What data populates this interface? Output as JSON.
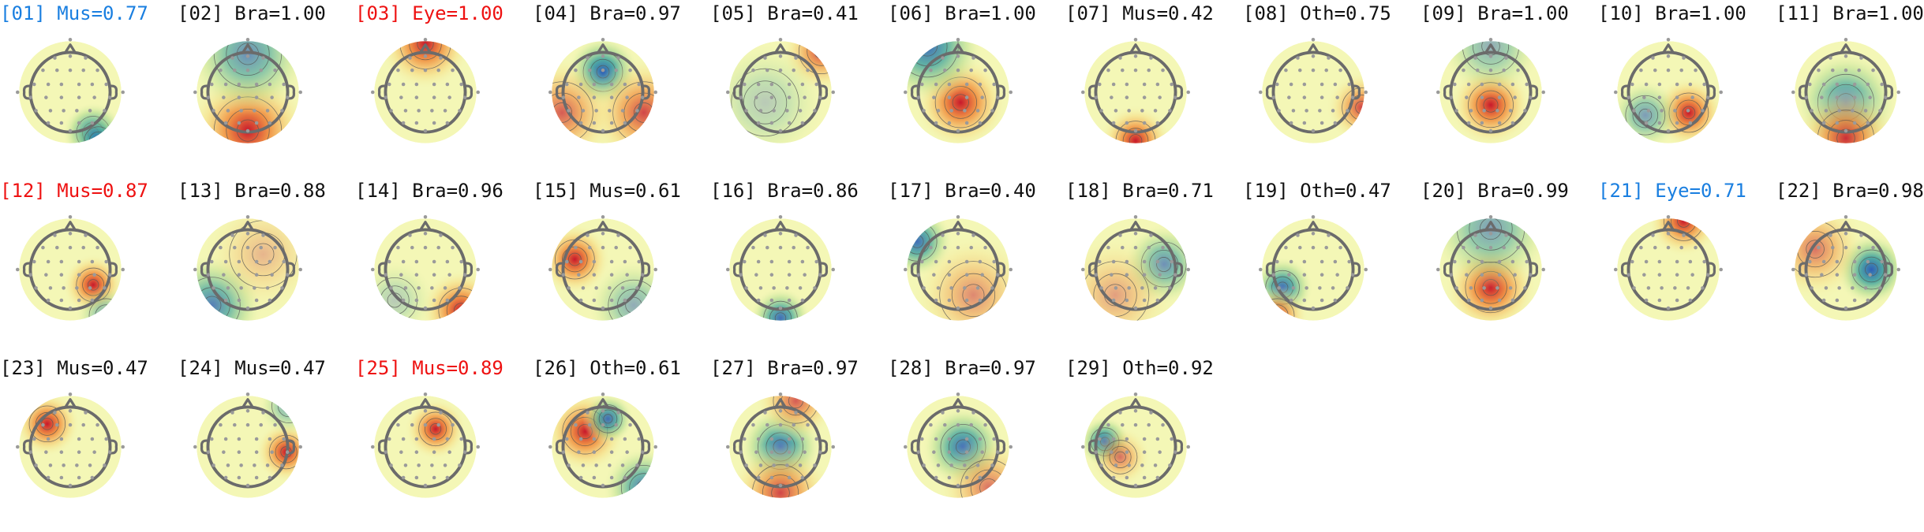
{
  "colors": {
    "flag_red": "#ee1111",
    "flag_blue": "#1a7fe0",
    "text": "#111111",
    "head_outline": "#6b6b6b",
    "electrode": "#9a9a9a",
    "contour": "#555555",
    "scale_neg": "#2f5fb8",
    "scale_mid": "#f4f7b6",
    "scale_pos": "#c8192b"
  },
  "components": [
    {
      "id": "[01]",
      "label": "Mus=0.77",
      "id_color": "blue",
      "label_color": "blue"
    },
    {
      "id": "[02]",
      "label": "Bra=1.00",
      "id_color": "black",
      "label_color": "black"
    },
    {
      "id": "[03]",
      "label": "Eye=1.00",
      "id_color": "red",
      "label_color": "red"
    },
    {
      "id": "[04]",
      "label": "Bra=0.97",
      "id_color": "black",
      "label_color": "black"
    },
    {
      "id": "[05]",
      "label": "Bra=0.41",
      "id_color": "black",
      "label_color": "black"
    },
    {
      "id": "[06]",
      "label": "Bra=1.00",
      "id_color": "black",
      "label_color": "black"
    },
    {
      "id": "[07]",
      "label": "Mus=0.42",
      "id_color": "black",
      "label_color": "black"
    },
    {
      "id": "[08]",
      "label": "Oth=0.75",
      "id_color": "black",
      "label_color": "black"
    },
    {
      "id": "[09]",
      "label": "Bra=1.00",
      "id_color": "black",
      "label_color": "black"
    },
    {
      "id": "[10]",
      "label": "Bra=1.00",
      "id_color": "black",
      "label_color": "black"
    },
    {
      "id": "[11]",
      "label": "Bra=1.00",
      "id_color": "black",
      "label_color": "black"
    },
    {
      "id": "[12]",
      "label": "Mus=0.87",
      "id_color": "red",
      "label_color": "red"
    },
    {
      "id": "[13]",
      "label": "Bra=0.88",
      "id_color": "black",
      "label_color": "black"
    },
    {
      "id": "[14]",
      "label": "Bra=0.96",
      "id_color": "black",
      "label_color": "black"
    },
    {
      "id": "[15]",
      "label": "Mus=0.61",
      "id_color": "black",
      "label_color": "black"
    },
    {
      "id": "[16]",
      "label": "Bra=0.86",
      "id_color": "black",
      "label_color": "black"
    },
    {
      "id": "[17]",
      "label": "Bra=0.40",
      "id_color": "black",
      "label_color": "black"
    },
    {
      "id": "[18]",
      "label": "Bra=0.71",
      "id_color": "black",
      "label_color": "black"
    },
    {
      "id": "[19]",
      "label": "Oth=0.47",
      "id_color": "black",
      "label_color": "black"
    },
    {
      "id": "[20]",
      "label": "Bra=0.99",
      "id_color": "black",
      "label_color": "black"
    },
    {
      "id": "[21]",
      "label": "Eye=0.71",
      "id_color": "blue",
      "label_color": "blue"
    },
    {
      "id": "[22]",
      "label": "Bra=0.98",
      "id_color": "black",
      "label_color": "black"
    },
    {
      "id": "[23]",
      "label": "Mus=0.47",
      "id_color": "black",
      "label_color": "black"
    },
    {
      "id": "[24]",
      "label": "Mus=0.47",
      "id_color": "black",
      "label_color": "black"
    },
    {
      "id": "[25]",
      "label": "Mus=0.89",
      "id_color": "red",
      "label_color": "red"
    },
    {
      "id": "[26]",
      "label": "Oth=0.61",
      "id_color": "black",
      "label_color": "black"
    },
    {
      "id": "[27]",
      "label": "Bra=0.97",
      "id_color": "black",
      "label_color": "black"
    },
    {
      "id": "[28]",
      "label": "Bra=0.97",
      "id_color": "black",
      "label_color": "black"
    },
    {
      "id": "[29]",
      "label": "Oth=0.92",
      "id_color": "black",
      "label_color": "black"
    }
  ]
}
